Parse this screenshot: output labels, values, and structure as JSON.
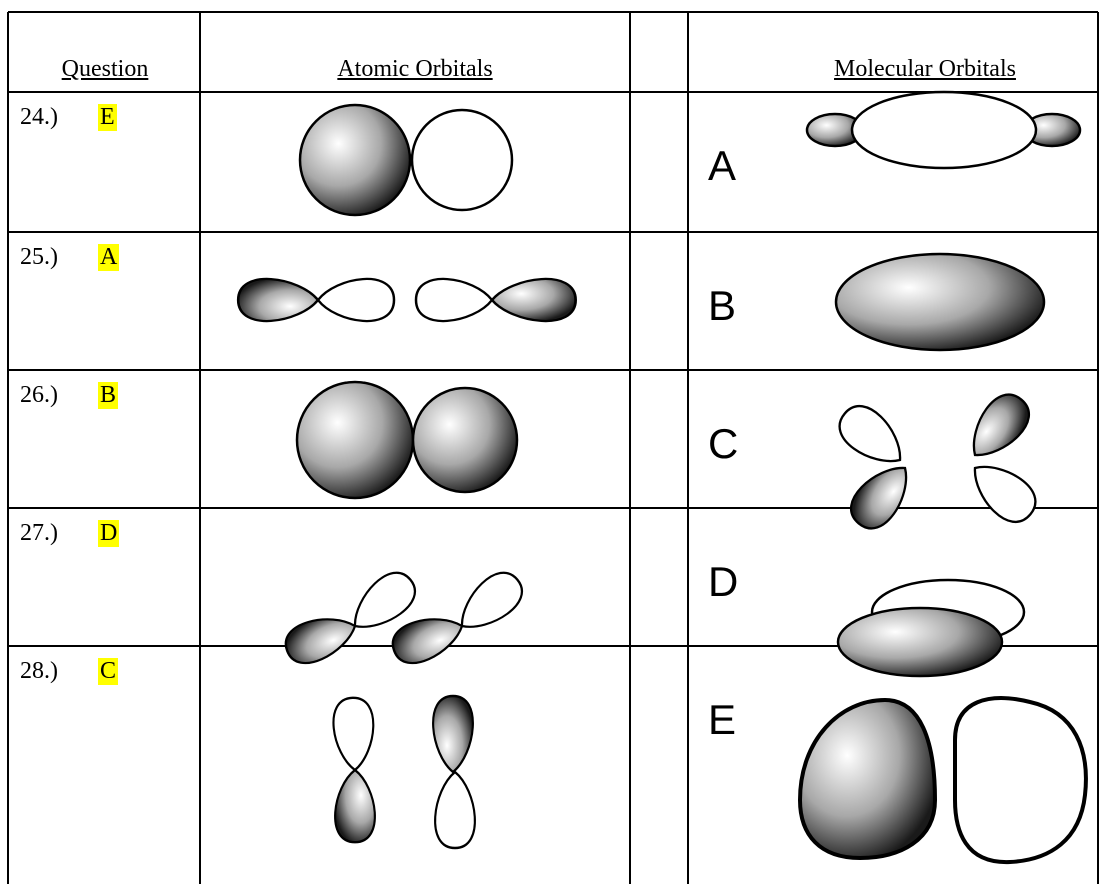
{
  "header": {
    "question": "Question",
    "atomic": "Atomic Orbitals",
    "molecular": "Molecular Orbitals"
  },
  "rows": [
    {
      "number": "24.)",
      "answer": "E",
      "label": "A"
    },
    {
      "number": "25.)",
      "answer": "A",
      "label": "B"
    },
    {
      "number": "26.)",
      "answer": "B",
      "label": "C"
    },
    {
      "number": "27.)",
      "answer": "D",
      "label": "D"
    },
    {
      "number": "28.)",
      "answer": "C",
      "label": "E"
    }
  ]
}
